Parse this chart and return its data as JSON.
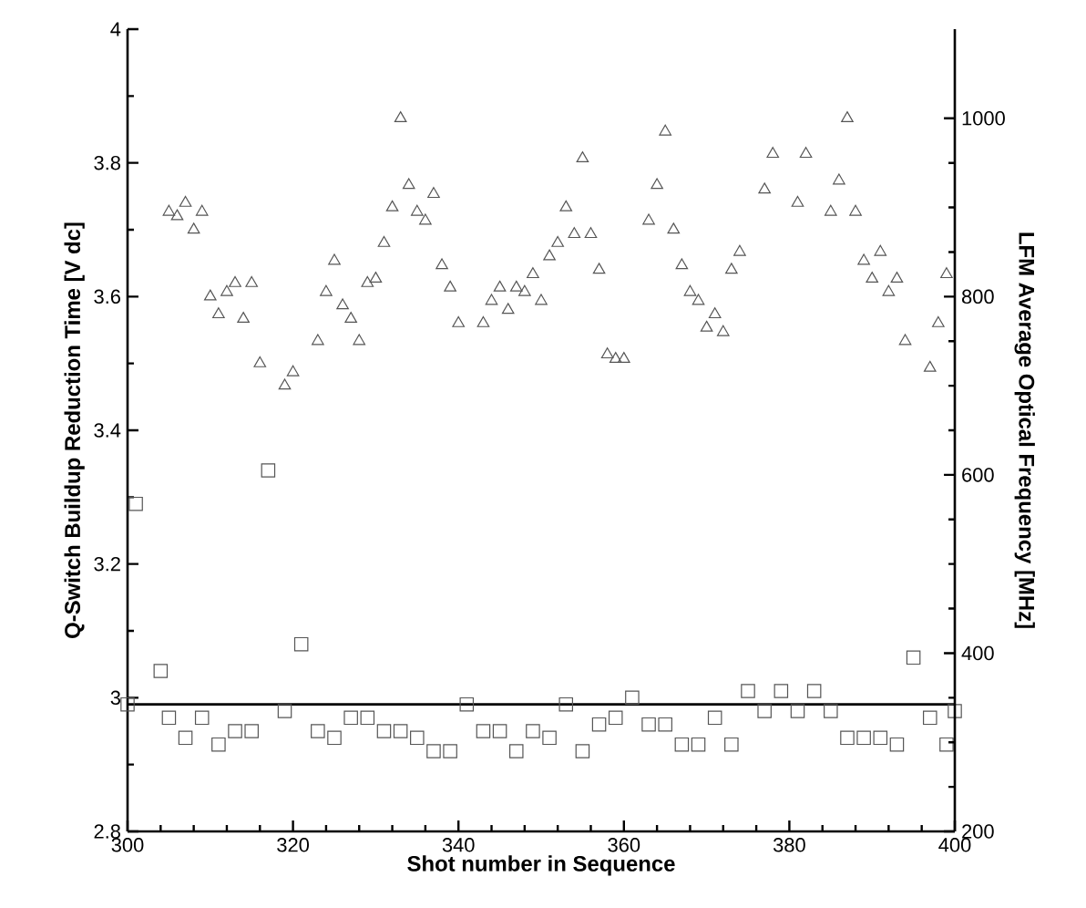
{
  "chart_data": {
    "type": "scatter",
    "xlabel": "Shot number in Sequence",
    "ylabel": "Q-Switch Buildup Reduction Time [V dc]",
    "y2label": "LFM Average Optical Frequency [MHz]",
    "xlim": [
      300,
      400
    ],
    "xticks": [
      300,
      320,
      340,
      360,
      380,
      400
    ],
    "ylim": [
      2.8,
      4
    ],
    "yticks": [
      2.8,
      3,
      3.2,
      3.4,
      3.6,
      3.8,
      4
    ],
    "y2lim": [
      200,
      1100
    ],
    "y2ticks": [
      200,
      400,
      600,
      800,
      1000
    ],
    "series": [
      {
        "axis": "y",
        "marker": "square",
        "color": "#555555",
        "x": [
          300,
          301,
          304,
          305,
          307,
          309,
          311,
          313,
          315,
          317,
          319,
          321,
          323,
          325,
          327,
          329,
          331,
          333,
          335,
          337,
          339,
          341,
          343,
          345,
          347,
          349,
          351,
          353,
          355,
          357,
          359,
          361,
          363,
          365,
          367,
          369,
          371,
          373,
          375,
          377,
          379,
          381,
          383,
          385,
          387,
          389,
          391,
          393,
          395,
          397,
          399,
          400
        ],
        "values": [
          2.99,
          3.29,
          3.04,
          2.97,
          2.94,
          2.97,
          2.93,
          2.95,
          2.95,
          3.34,
          2.98,
          3.08,
          2.95,
          2.94,
          2.97,
          2.97,
          2.95,
          2.95,
          2.94,
          2.92,
          2.92,
          2.99,
          2.95,
          2.95,
          2.92,
          2.95,
          2.94,
          2.99,
          2.92,
          2.96,
          2.97,
          3.0,
          2.96,
          2.96,
          2.93,
          2.93,
          2.97,
          2.93,
          3.01,
          2.98,
          3.01,
          2.98,
          3.01,
          2.98,
          2.94,
          2.94,
          2.94,
          2.93,
          3.06,
          2.97,
          2.93,
          2.98
        ]
      },
      {
        "axis": "y2",
        "marker": "triangle",
        "color": "#555555",
        "x": [
          305,
          306,
          307,
          308,
          309,
          310,
          311,
          312,
          313,
          314,
          315,
          316,
          319,
          320,
          323,
          324,
          325,
          326,
          327,
          328,
          329,
          330,
          331,
          332,
          333,
          334,
          335,
          336,
          337,
          338,
          339,
          340,
          343,
          344,
          345,
          346,
          347,
          348,
          349,
          350,
          351,
          352,
          353,
          354,
          355,
          356,
          357,
          358,
          359,
          360,
          363,
          364,
          365,
          366,
          367,
          368,
          369,
          370,
          371,
          372,
          373,
          374,
          377,
          378,
          381,
          382,
          385,
          386,
          387,
          388,
          389,
          390,
          391,
          392,
          393,
          394,
          397,
          398,
          399
        ],
        "values": [
          895,
          890,
          905,
          875,
          895,
          800,
          780,
          805,
          815,
          775,
          815,
          725,
          700,
          715,
          750,
          805,
          840,
          790,
          775,
          750,
          815,
          820,
          860,
          900,
          1000,
          925,
          895,
          885,
          915,
          835,
          810,
          770,
          770,
          795,
          810,
          785,
          810,
          805,
          825,
          795,
          845,
          860,
          900,
          870,
          955,
          870,
          830,
          735,
          730,
          730,
          885,
          925,
          985,
          875,
          835,
          805,
          795,
          765,
          780,
          760,
          830,
          850,
          920,
          960,
          905,
          960,
          895,
          930,
          1000,
          895,
          840,
          820,
          850,
          805,
          820,
          750,
          720,
          770,
          825
        ]
      }
    ],
    "ref_lines": [
      {
        "axis": "y",
        "value": 2.99,
        "color": "#000000",
        "line_style": "solid"
      }
    ]
  }
}
